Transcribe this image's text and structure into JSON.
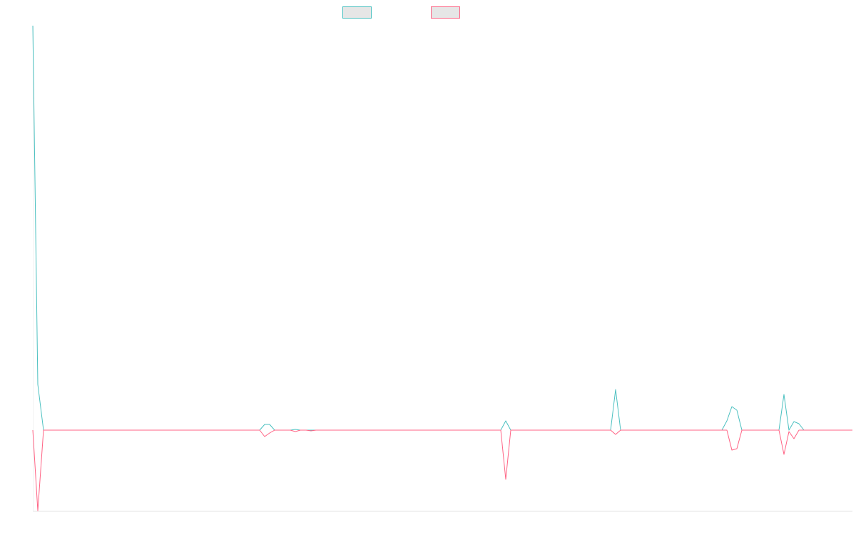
{
  "chart_data": {
    "type": "line",
    "x": [
      0,
      7,
      15,
      318,
      325,
      332,
      339,
      361,
      368,
      375,
      383,
      390,
      397,
      656,
      663,
      670,
      810,
      817,
      824,
      966,
      973,
      980,
      987,
      994,
      1046,
      1053,
      1060,
      1067,
      1074,
      1081,
      1149
    ],
    "series": [
      {
        "color": "#4bc0c0",
        "values": [
          567,
          64,
          0,
          0,
          8,
          8,
          0,
          0,
          1,
          0,
          0,
          0,
          0,
          0,
          13,
          0,
          0,
          57,
          0,
          0,
          13,
          33,
          28,
          0,
          0,
          50,
          0,
          12,
          9,
          0,
          0
        ]
      },
      {
        "color": "#ff6384",
        "values": [
          0,
          -113,
          0,
          0,
          -9,
          -4,
          0,
          0,
          -2,
          0,
          0,
          -1,
          0,
          0,
          -69,
          0,
          0,
          -6,
          0,
          0,
          0,
          -28,
          -26,
          0,
          0,
          -34,
          -2,
          -12,
          0,
          0,
          0
        ]
      }
    ],
    "xlim": [
      0,
      1149
    ],
    "ylim": [
      -113,
      567
    ]
  }
}
